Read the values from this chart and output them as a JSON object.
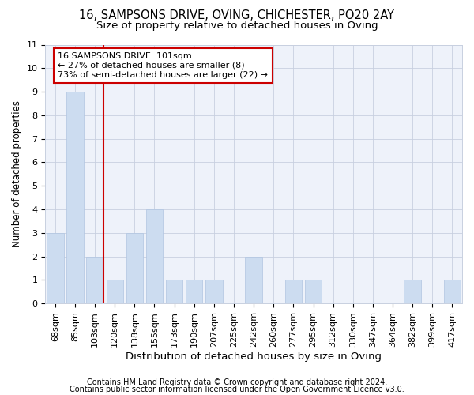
{
  "title1": "16, SAMPSONS DRIVE, OVING, CHICHESTER, PO20 2AY",
  "title2": "Size of property relative to detached houses in Oving",
  "xlabel": "Distribution of detached houses by size in Oving",
  "ylabel": "Number of detached properties",
  "categories": [
    "68sqm",
    "85sqm",
    "103sqm",
    "120sqm",
    "138sqm",
    "155sqm",
    "173sqm",
    "190sqm",
    "207sqm",
    "225sqm",
    "242sqm",
    "260sqm",
    "277sqm",
    "295sqm",
    "312sqm",
    "330sqm",
    "347sqm",
    "364sqm",
    "382sqm",
    "399sqm",
    "417sqm"
  ],
  "values": [
    3,
    9,
    2,
    1,
    3,
    4,
    1,
    1,
    1,
    0,
    2,
    0,
    1,
    1,
    0,
    0,
    0,
    0,
    1,
    0,
    1
  ],
  "bar_color": "#ccdcf0",
  "bar_edge_color": "#b0c4e0",
  "reference_line_x": 2,
  "reference_line_color": "#cc0000",
  "annotation_line1": "16 SAMPSONS DRIVE: 101sqm",
  "annotation_line2": "← 27% of detached houses are smaller (8)",
  "annotation_line3": "73% of semi-detached houses are larger (22) →",
  "annotation_box_edgecolor": "#cc0000",
  "annotation_facecolor": "white",
  "ylim": [
    0,
    11
  ],
  "yticks": [
    0,
    1,
    2,
    3,
    4,
    5,
    6,
    7,
    8,
    9,
    10,
    11
  ],
  "footer1": "Contains HM Land Registry data © Crown copyright and database right 2024.",
  "footer2": "Contains public sector information licensed under the Open Government Licence v3.0.",
  "title1_fontsize": 10.5,
  "title2_fontsize": 9.5,
  "xlabel_fontsize": 9.5,
  "ylabel_fontsize": 8.5,
  "tick_fontsize": 8,
  "annotation_fontsize": 8,
  "footer_fontsize": 7,
  "background_color": "#eef2fa",
  "grid_color": "#c8d0e0"
}
